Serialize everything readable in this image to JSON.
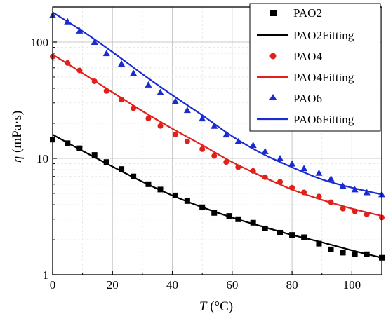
{
  "chart_data": {
    "type": "scatter",
    "xlabel": {
      "symbol": "T",
      "unit": " (°C)"
    },
    "ylabel": {
      "symbol": "η",
      "unit": " (mPa·s)"
    },
    "xlim": [
      0,
      110
    ],
    "ylim": [
      1,
      200
    ],
    "yscale": "log",
    "x_ticks": [
      0,
      20,
      40,
      60,
      80,
      100
    ],
    "x_tick_labels": [
      "0",
      "20",
      "40",
      "60",
      "80",
      "100"
    ],
    "y_ticks": [
      1,
      10,
      100
    ],
    "y_tick_labels": [
      "1",
      "10",
      "100"
    ],
    "grid": true,
    "legend_position": "top-right",
    "series": [
      {
        "name": "PAO2",
        "fit_name": "PAO2Fitting",
        "marker": "square",
        "color": "#000000",
        "x": [
          0,
          5,
          9,
          14,
          18,
          23,
          27,
          32,
          36,
          41,
          45,
          50,
          54,
          59,
          62,
          67,
          71,
          76,
          80,
          84,
          89,
          93,
          97,
          101,
          105,
          110
        ],
        "y": [
          14.5,
          13.5,
          12.2,
          10.7,
          9.3,
          8.1,
          7.0,
          6.0,
          5.4,
          4.8,
          4.3,
          3.8,
          3.4,
          3.2,
          3.0,
          2.8,
          2.5,
          2.3,
          2.2,
          2.1,
          1.85,
          1.65,
          1.55,
          1.5,
          1.5,
          1.4
        ],
        "fit_x": [
          0,
          10,
          20,
          30,
          40,
          50,
          60,
          70,
          80,
          90,
          100,
          110
        ],
        "fit_y": [
          16.0,
          11.6,
          8.5,
          6.3,
          4.8,
          3.8,
          3.1,
          2.6,
          2.2,
          1.9,
          1.62,
          1.4
        ]
      },
      {
        "name": "PAO4",
        "fit_name": "PAO4Fitting",
        "marker": "circle",
        "color": "#e0201b",
        "x": [
          0,
          5,
          9,
          14,
          18,
          23,
          27,
          32,
          36,
          41,
          45,
          50,
          54,
          58,
          62,
          67,
          71,
          76,
          80,
          84,
          89,
          93,
          97,
          101,
          105,
          110
        ],
        "y": [
          75,
          66,
          57,
          46,
          38,
          32,
          27,
          22,
          19,
          16,
          14,
          12,
          10.5,
          9.3,
          8.4,
          7.8,
          6.9,
          6.3,
          5.6,
          5.1,
          4.7,
          4.2,
          3.7,
          3.5,
          3.3,
          3.1
        ],
        "fit_x": [
          0,
          10,
          20,
          30,
          40,
          50,
          60,
          70,
          80,
          90,
          100,
          110
        ],
        "fit_y": [
          78,
          54,
          37,
          25.5,
          18,
          13,
          9.3,
          7.0,
          5.4,
          4.4,
          3.7,
          3.2
        ]
      },
      {
        "name": "PAO6",
        "fit_name": "PAO6Fitting",
        "marker": "triangle",
        "color": "#1a2ccf",
        "x": [
          0,
          5,
          9,
          14,
          18,
          23,
          27,
          32,
          36,
          41,
          45,
          50,
          54,
          58,
          62,
          67,
          71,
          76,
          80,
          84,
          89,
          93,
          97,
          101,
          105,
          110
        ],
        "y": [
          170,
          150,
          125,
          100,
          80,
          65,
          54,
          43,
          37,
          31,
          26,
          22,
          19,
          16,
          14,
          13,
          11.5,
          10,
          9,
          8.2,
          7.5,
          6.7,
          5.8,
          5.4,
          5.1,
          4.9
        ],
        "fit_x": [
          0,
          10,
          20,
          30,
          40,
          50,
          60,
          70,
          80,
          90,
          100,
          110
        ],
        "fit_y": [
          180,
          124,
          82,
          53,
          35,
          23.5,
          15.5,
          11,
          8.4,
          6.6,
          5.6,
          4.9
        ]
      }
    ]
  }
}
